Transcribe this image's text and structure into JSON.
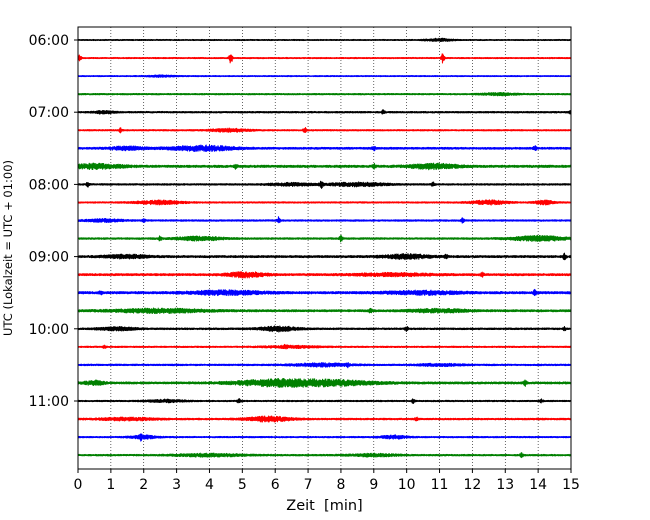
{
  "chart_data": {
    "type": "line",
    "title": "",
    "xlabel": "Zeit  [min]",
    "ylabel": "UTC (Lokalzeit = UTC + 01:00)",
    "xlim": [
      0,
      15
    ],
    "x_ticks": [
      0,
      1,
      2,
      3,
      4,
      5,
      6,
      7,
      8,
      9,
      10,
      11,
      12,
      13,
      14,
      15
    ],
    "x_grid": "dotted vertical at each minute",
    "y_tick_labels": [
      "06:00",
      "07:00",
      "08:00",
      "09:00",
      "10:00",
      "11:00"
    ],
    "y_tick_rows": [
      0,
      4,
      8,
      12,
      16,
      20
    ],
    "row_interval_minutes": 15,
    "start_time": "06:00",
    "color_cycle": [
      "#000000",
      "#ff0000",
      "#0000ff",
      "#008000"
    ],
    "series": [
      {
        "amp": 0.2,
        "bursts": [
          [
            11.0,
            0.3,
            0.5
          ]
        ]
      },
      {
        "amp": 0.22,
        "spikes": [
          [
            0.05,
            1.0
          ],
          [
            4.65,
            2.1
          ],
          [
            11.1,
            1.8
          ]
        ]
      },
      {
        "amp": 0.2,
        "bursts": [
          [
            2.5,
            0.3,
            0.3
          ]
        ]
      },
      {
        "amp": 0.25,
        "bursts": [
          [
            12.8,
            0.4,
            0.4
          ]
        ]
      },
      {
        "amp": 0.28,
        "bursts": [
          [
            0.8,
            0.2,
            0.5
          ]
        ],
        "spikes": [
          [
            9.3,
            0.9
          ],
          [
            15.0,
            1.0
          ]
        ]
      },
      {
        "amp": 0.25,
        "bursts": [
          [
            4.6,
            0.4,
            0.6
          ]
        ],
        "spikes": [
          [
            1.3,
            0.8
          ],
          [
            6.9,
            1.0
          ]
        ]
      },
      {
        "amp": 0.35,
        "bursts": [
          [
            3.8,
            0.7,
            0.9
          ],
          [
            1.5,
            0.4,
            0.6
          ]
        ],
        "spikes": [
          [
            13.9,
            0.8
          ],
          [
            9.0,
            0.7
          ]
        ]
      },
      {
        "amp": 0.42,
        "bursts": [
          [
            0.5,
            0.6,
            0.8
          ],
          [
            10.8,
            0.5,
            0.9
          ]
        ],
        "spikes": [
          [
            4.8,
            0.8
          ],
          [
            9.0,
            0.8
          ]
        ]
      },
      {
        "amp": 0.28,
        "bursts": [
          [
            8.5,
            0.6,
            0.7
          ],
          [
            6.5,
            0.5,
            0.5
          ]
        ],
        "spikes": [
          [
            0.3,
            0.8
          ],
          [
            7.4,
            1.1
          ],
          [
            10.8,
            0.9
          ]
        ]
      },
      {
        "amp": 0.25,
        "bursts": [
          [
            2.5,
            0.5,
            0.7
          ],
          [
            12.5,
            0.4,
            0.8
          ],
          [
            14.2,
            0.2,
            0.8
          ]
        ]
      },
      {
        "amp": 0.28,
        "bursts": [
          [
            0.8,
            0.4,
            0.5
          ]
        ],
        "spikes": [
          [
            6.1,
            1.2
          ],
          [
            11.7,
            0.8
          ],
          [
            2.0,
            0.5
          ]
        ]
      },
      {
        "amp": 0.3,
        "bursts": [
          [
            3.7,
            0.5,
            0.7
          ],
          [
            14.0,
            0.6,
            0.9
          ]
        ],
        "spikes": [
          [
            2.5,
            0.8
          ],
          [
            8.0,
            1.1
          ]
        ]
      },
      {
        "amp": 0.38,
        "bursts": [
          [
            10.0,
            0.5,
            0.8
          ],
          [
            1.5,
            0.5,
            0.6
          ]
        ],
        "spikes": [
          [
            14.8,
            1.0
          ],
          [
            11.2,
            0.7
          ]
        ]
      },
      {
        "amp": 0.38,
        "bursts": [
          [
            5.1,
            0.4,
            0.9
          ],
          [
            9.5,
            0.8,
            0.5
          ]
        ],
        "spikes": [
          [
            12.3,
            0.6
          ]
        ]
      },
      {
        "amp": 0.42,
        "bursts": [
          [
            4.5,
            0.8,
            0.7
          ],
          [
            10.5,
            0.8,
            0.6
          ]
        ],
        "spikes": [
          [
            13.9,
            1.0
          ],
          [
            0.7,
            0.7
          ]
        ]
      },
      {
        "amp": 0.38,
        "bursts": [
          [
            2.5,
            1.0,
            0.7
          ],
          [
            11.0,
            0.6,
            0.6
          ]
        ],
        "spikes": [
          [
            8.9,
            0.7
          ]
        ]
      },
      {
        "amp": 0.3,
        "bursts": [
          [
            6.1,
            0.4,
            0.9
          ],
          [
            1.2,
            0.4,
            0.6
          ]
        ],
        "spikes": [
          [
            10.0,
            0.8
          ],
          [
            14.8,
            0.6
          ]
        ]
      },
      {
        "amp": 0.25,
        "bursts": [
          [
            6.5,
            0.6,
            0.4
          ]
        ],
        "spikes": [
          [
            0.8,
            0.5
          ],
          [
            6.3,
            0.6
          ]
        ]
      },
      {
        "amp": 0.28,
        "bursts": [
          [
            7.4,
            0.6,
            0.6
          ],
          [
            11.0,
            0.5,
            0.4
          ]
        ],
        "spikes": [
          [
            8.2,
            0.6
          ]
        ]
      },
      {
        "amp": 0.38,
        "bursts": [
          [
            6.0,
            0.9,
            1.1
          ],
          [
            7.7,
            1.0,
            0.9
          ],
          [
            0.5,
            0.2,
            0.8
          ]
        ],
        "spikes": [
          [
            13.6,
            1.0
          ]
        ]
      },
      {
        "amp": 0.25,
        "bursts": [
          [
            2.7,
            0.4,
            0.5
          ]
        ],
        "spikes": [
          [
            4.9,
            0.9
          ],
          [
            10.2,
            0.7
          ],
          [
            14.1,
            0.7
          ]
        ]
      },
      {
        "amp": 0.3,
        "bursts": [
          [
            5.8,
            0.5,
            0.9
          ],
          [
            1.5,
            0.6,
            0.5
          ]
        ],
        "spikes": [
          [
            10.3,
            0.6
          ]
        ]
      },
      {
        "amp": 0.25,
        "bursts": [
          [
            2.0,
            0.3,
            0.6
          ],
          [
            9.6,
            0.3,
            0.6
          ]
        ],
        "spikes": [
          [
            1.9,
            0.8
          ]
        ]
      },
      {
        "amp": 0.28,
        "bursts": [
          [
            4.0,
            0.8,
            0.5
          ],
          [
            9.0,
            0.5,
            0.5
          ]
        ],
        "spikes": [
          [
            13.5,
            0.8
          ]
        ]
      }
    ]
  }
}
